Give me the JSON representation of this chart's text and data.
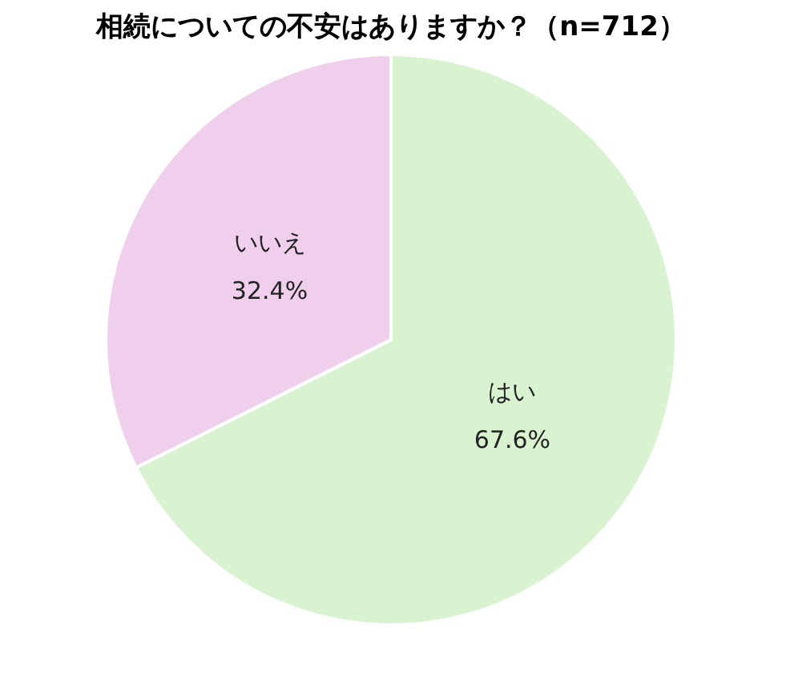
{
  "chart_data": {
    "type": "pie",
    "title": "相続についての不安はありますか？（n=712）",
    "categories": [
      "はい",
      "いいえ"
    ],
    "values": [
      67.6,
      32.4
    ],
    "value_labels": [
      "67.6%",
      "32.4%"
    ],
    "colors": [
      "#d9f2d0",
      "#f0cfed"
    ],
    "legend": false
  }
}
